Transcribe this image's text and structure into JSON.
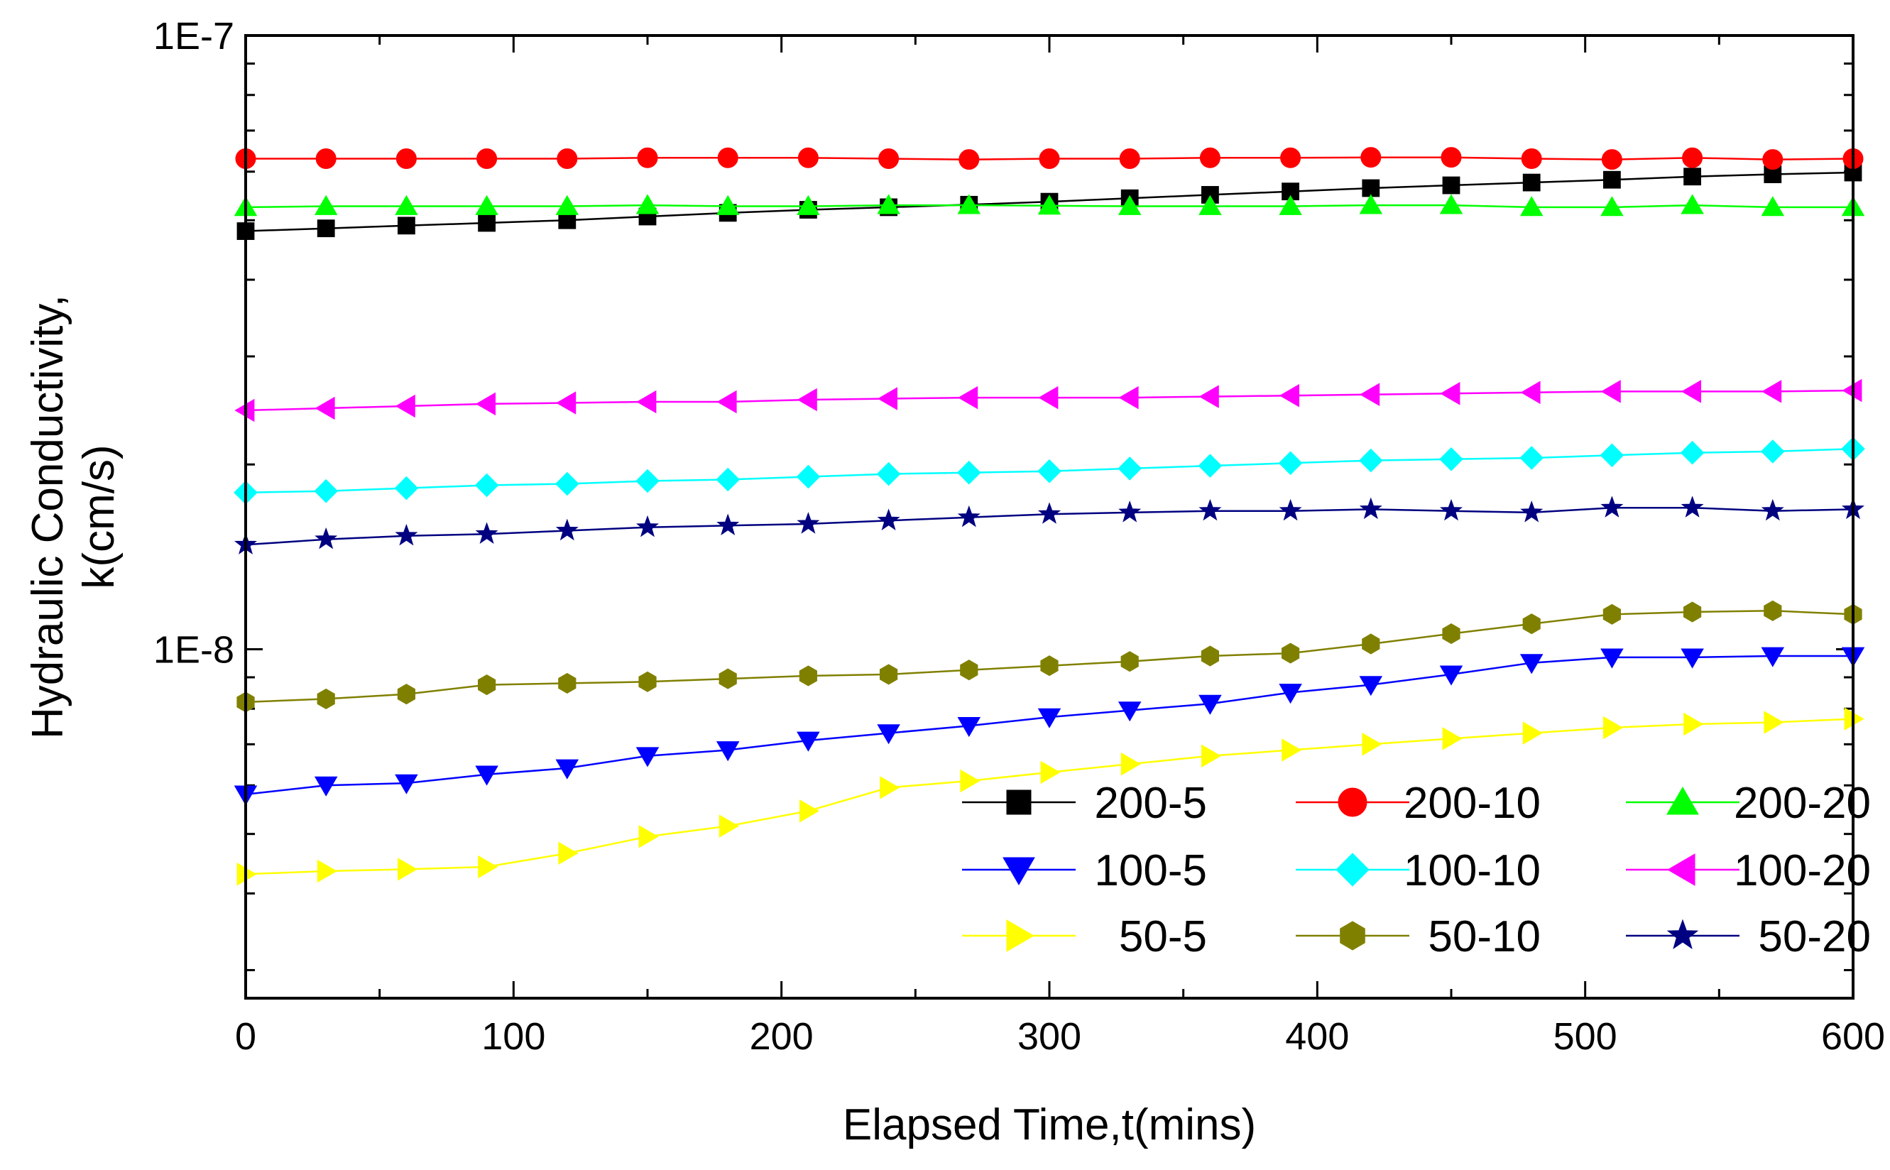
{
  "chart_data": {
    "type": "line",
    "title": "",
    "xlabel": "Elapsed Time,t(mins)",
    "ylabel_lines": [
      "Hydraulic Conductivity,",
      "k(cm/s)"
    ],
    "yscale": "log",
    "xlim": [
      0,
      600
    ],
    "ylim": [
      2.7e-09,
      1e-07
    ],
    "x_ticks": [
      0,
      100,
      200,
      300,
      400,
      500,
      600
    ],
    "x_tick_labels": [
      "0",
      "100",
      "200",
      "300",
      "400",
      "500",
      "600"
    ],
    "y_tick_labels": [
      {
        "value": 1e-07,
        "label": "1E-7"
      },
      {
        "value": 1e-08,
        "label": "1E-8"
      }
    ],
    "legend_position": "bottom-right",
    "x": [
      0,
      30,
      60,
      90,
      120,
      150,
      180,
      210,
      240,
      270,
      300,
      330,
      360,
      390,
      420,
      450,
      480,
      510,
      540,
      570,
      600
    ],
    "series": [
      {
        "name": "200-5",
        "color": "#000000",
        "marker": "square",
        "values": [
          4.8e-08,
          4.85e-08,
          4.9e-08,
          4.95e-08,
          5e-08,
          5.07e-08,
          5.14e-08,
          5.2e-08,
          5.25e-08,
          5.3e-08,
          5.36e-08,
          5.43e-08,
          5.5e-08,
          5.57e-08,
          5.64e-08,
          5.7e-08,
          5.76e-08,
          5.82e-08,
          5.89e-08,
          5.94e-08,
          5.98e-08
        ]
      },
      {
        "name": "200-10",
        "color": "#ff0000",
        "marker": "circle",
        "values": [
          6.3e-08,
          6.3e-08,
          6.3e-08,
          6.3e-08,
          6.3e-08,
          6.32e-08,
          6.32e-08,
          6.32e-08,
          6.3e-08,
          6.28e-08,
          6.3e-08,
          6.3e-08,
          6.32e-08,
          6.32e-08,
          6.33e-08,
          6.33e-08,
          6.3e-08,
          6.28e-08,
          6.32e-08,
          6.28e-08,
          6.3e-08
        ]
      },
      {
        "name": "200-20",
        "color": "#00ff00",
        "marker": "triangle-up",
        "values": [
          5.25e-08,
          5.27e-08,
          5.27e-08,
          5.27e-08,
          5.27e-08,
          5.29e-08,
          5.27e-08,
          5.27e-08,
          5.29e-08,
          5.29e-08,
          5.28e-08,
          5.27e-08,
          5.27e-08,
          5.27e-08,
          5.29e-08,
          5.29e-08,
          5.25e-08,
          5.25e-08,
          5.29e-08,
          5.25e-08,
          5.25e-08
        ]
      },
      {
        "name": "100-5",
        "color": "#0000ff",
        "marker": "triangle-down",
        "values": [
          5.8e-09,
          6e-09,
          6.05e-09,
          6.25e-09,
          6.4e-09,
          6.7e-09,
          6.85e-09,
          7.1e-09,
          7.3e-09,
          7.5e-09,
          7.75e-09,
          7.95e-09,
          8.15e-09,
          8.5e-09,
          8.75e-09,
          9.1e-09,
          9.5e-09,
          9.7e-09,
          9.7e-09,
          9.75e-09,
          9.75e-09
        ]
      },
      {
        "name": "100-10",
        "color": "#00ffff",
        "marker": "diamond",
        "values": [
          1.8e-08,
          1.81e-08,
          1.83e-08,
          1.85e-08,
          1.86e-08,
          1.88e-08,
          1.89e-08,
          1.91e-08,
          1.93e-08,
          1.94e-08,
          1.95e-08,
          1.97e-08,
          1.99e-08,
          2.01e-08,
          2.03e-08,
          2.04e-08,
          2.05e-08,
          2.07e-08,
          2.09e-08,
          2.1e-08,
          2.12e-08
        ]
      },
      {
        "name": "100-20",
        "color": "#ff00ff",
        "marker": "triangle-left",
        "values": [
          2.45e-08,
          2.47e-08,
          2.49e-08,
          2.51e-08,
          2.52e-08,
          2.53e-08,
          2.53e-08,
          2.55e-08,
          2.56e-08,
          2.57e-08,
          2.57e-08,
          2.57e-08,
          2.58e-08,
          2.59e-08,
          2.6e-08,
          2.61e-08,
          2.62e-08,
          2.63e-08,
          2.63e-08,
          2.63e-08,
          2.64e-08
        ]
      },
      {
        "name": "50-5",
        "color": "#ffff00",
        "marker": "triangle-right",
        "values": [
          4.3e-09,
          4.35e-09,
          4.38e-09,
          4.42e-09,
          4.65e-09,
          4.95e-09,
          5.15e-09,
          5.45e-09,
          5.95e-09,
          6.1e-09,
          6.3e-09,
          6.5e-09,
          6.7e-09,
          6.85e-09,
          7e-09,
          7.15e-09,
          7.3e-09,
          7.45e-09,
          7.55e-09,
          7.6e-09,
          7.7e-09
        ]
      },
      {
        "name": "50-10",
        "color": "#808000",
        "marker": "hexagon",
        "values": [
          8.2e-09,
          8.3e-09,
          8.45e-09,
          8.75e-09,
          8.8e-09,
          8.85e-09,
          8.95e-09,
          9.05e-09,
          9.1e-09,
          9.25e-09,
          9.4e-09,
          9.55e-09,
          9.75e-09,
          9.85e-09,
          1.02e-08,
          1.06e-08,
          1.1e-08,
          1.14e-08,
          1.15e-08,
          1.155e-08,
          1.14e-08
        ]
      },
      {
        "name": "50-20",
        "color": "#000080",
        "marker": "star",
        "values": [
          1.48e-08,
          1.51e-08,
          1.53e-08,
          1.54e-08,
          1.56e-08,
          1.58e-08,
          1.59e-08,
          1.6e-08,
          1.62e-08,
          1.64e-08,
          1.66e-08,
          1.67e-08,
          1.68e-08,
          1.68e-08,
          1.69e-08,
          1.68e-08,
          1.67e-08,
          1.7e-08,
          1.7e-08,
          1.68e-08,
          1.69e-08
        ]
      }
    ]
  }
}
